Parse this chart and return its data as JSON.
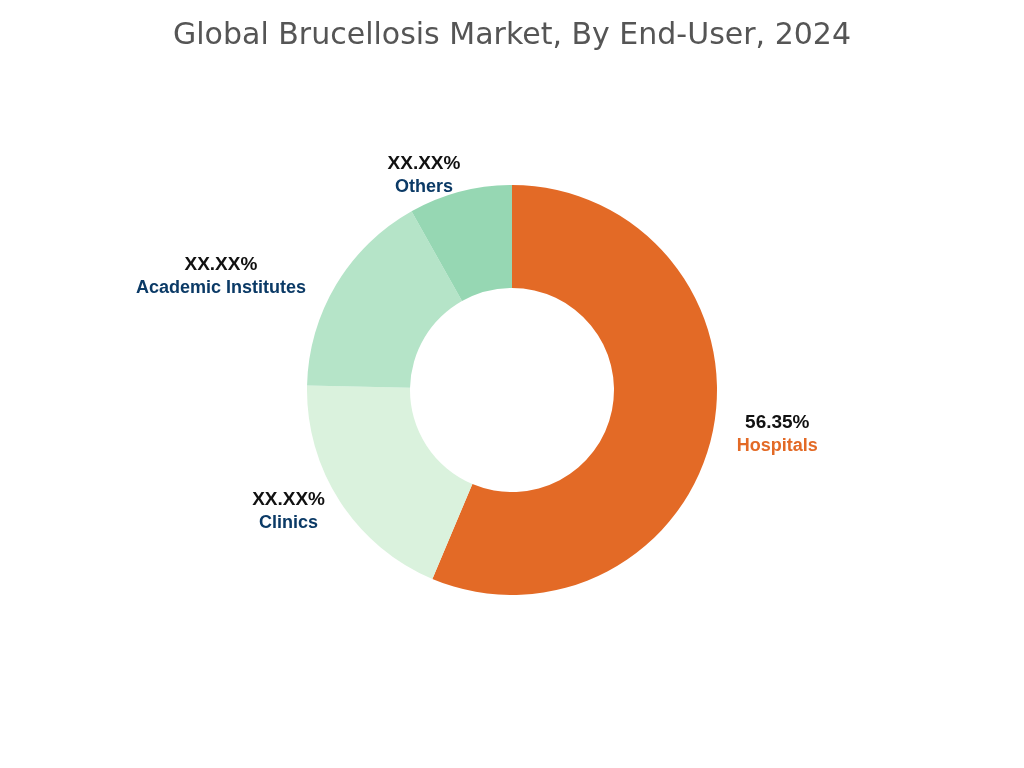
{
  "chart_data": {
    "type": "donut",
    "title": "Global Brucellosis Market, By End-User, 2024",
    "categories": [
      "Hospitals",
      "Clinics",
      "Academic Institutes",
      "Others"
    ],
    "values": [
      56.35,
      19.0,
      16.5,
      8.15
    ],
    "value_labels": [
      "56.35%",
      "XX.XX%",
      "XX.XX%",
      "XX.XX%"
    ],
    "colors": [
      "#e36a26",
      "#daf2dd",
      "#b5e4c8",
      "#96d7b3"
    ],
    "legend": false
  }
}
